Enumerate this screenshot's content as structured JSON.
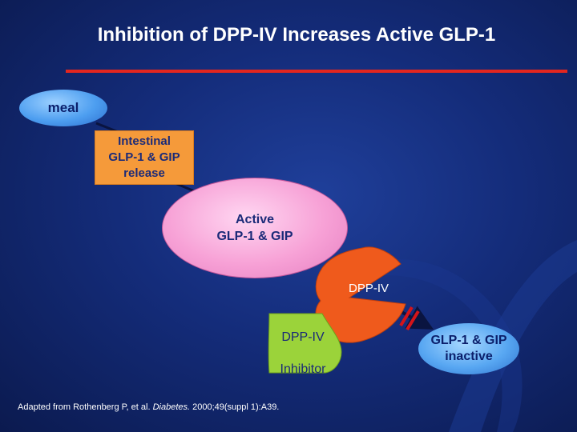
{
  "slide": {
    "title": "Inhibition of DPP-IV Increases Active GLP-1",
    "accent_color": "#e3261f",
    "background_color": "#142c7a"
  },
  "diagram": {
    "meal": "meal",
    "release_line1": "Intestinal",
    "release_line2": "GLP-1 & GIP",
    "release_line3": "release",
    "active_line1": "Active",
    "active_line2": "GLP-1 & GIP",
    "enzyme": "DPP-IV",
    "inhibitor_line1": "DPP-IV",
    "inhibitor_line2": "Inhibitor",
    "inactive_line1": "GLP-1 & GIP",
    "inactive_line2": "inactive",
    "colors": {
      "meal": "#4d9ef0",
      "release": "#f59a3a",
      "active": "#f7a1d6",
      "enzyme": "#ef5a1c",
      "inhibitor": "#9bd33a",
      "inactive": "#58a7f2",
      "block_marks": "#d4141a"
    }
  },
  "citation": {
    "prefix": "Adapted from Rothenberg P, et al. ",
    "journal": "Diabetes.",
    "suffix": " 2000;49(suppl 1):A39."
  }
}
